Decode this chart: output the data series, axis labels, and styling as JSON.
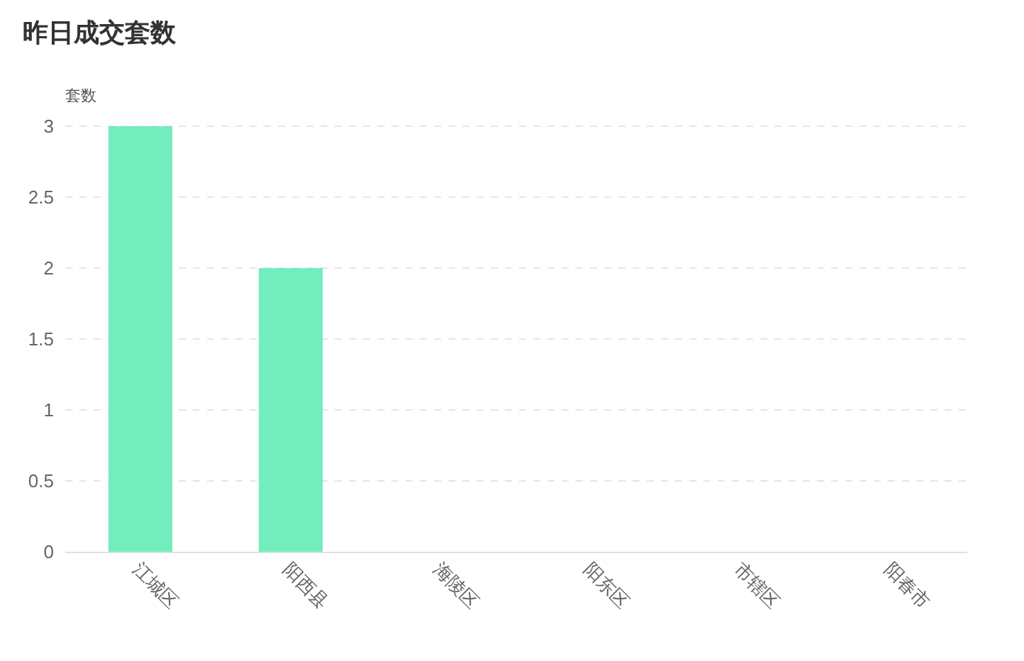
{
  "chart_data": {
    "type": "bar",
    "title": "昨日成交套数",
    "ylabel": "套数",
    "categories": [
      "江城区",
      "阳西县",
      "海陵区",
      "阳东区",
      "市辖区",
      "阳春市"
    ],
    "values": [
      3,
      2,
      0,
      0,
      0,
      0
    ],
    "color": "#72edbd",
    "ylim": [
      0,
      3
    ],
    "yticks": [
      0,
      0.5,
      1,
      1.5,
      2,
      2.5,
      3
    ],
    "grid": "y"
  }
}
